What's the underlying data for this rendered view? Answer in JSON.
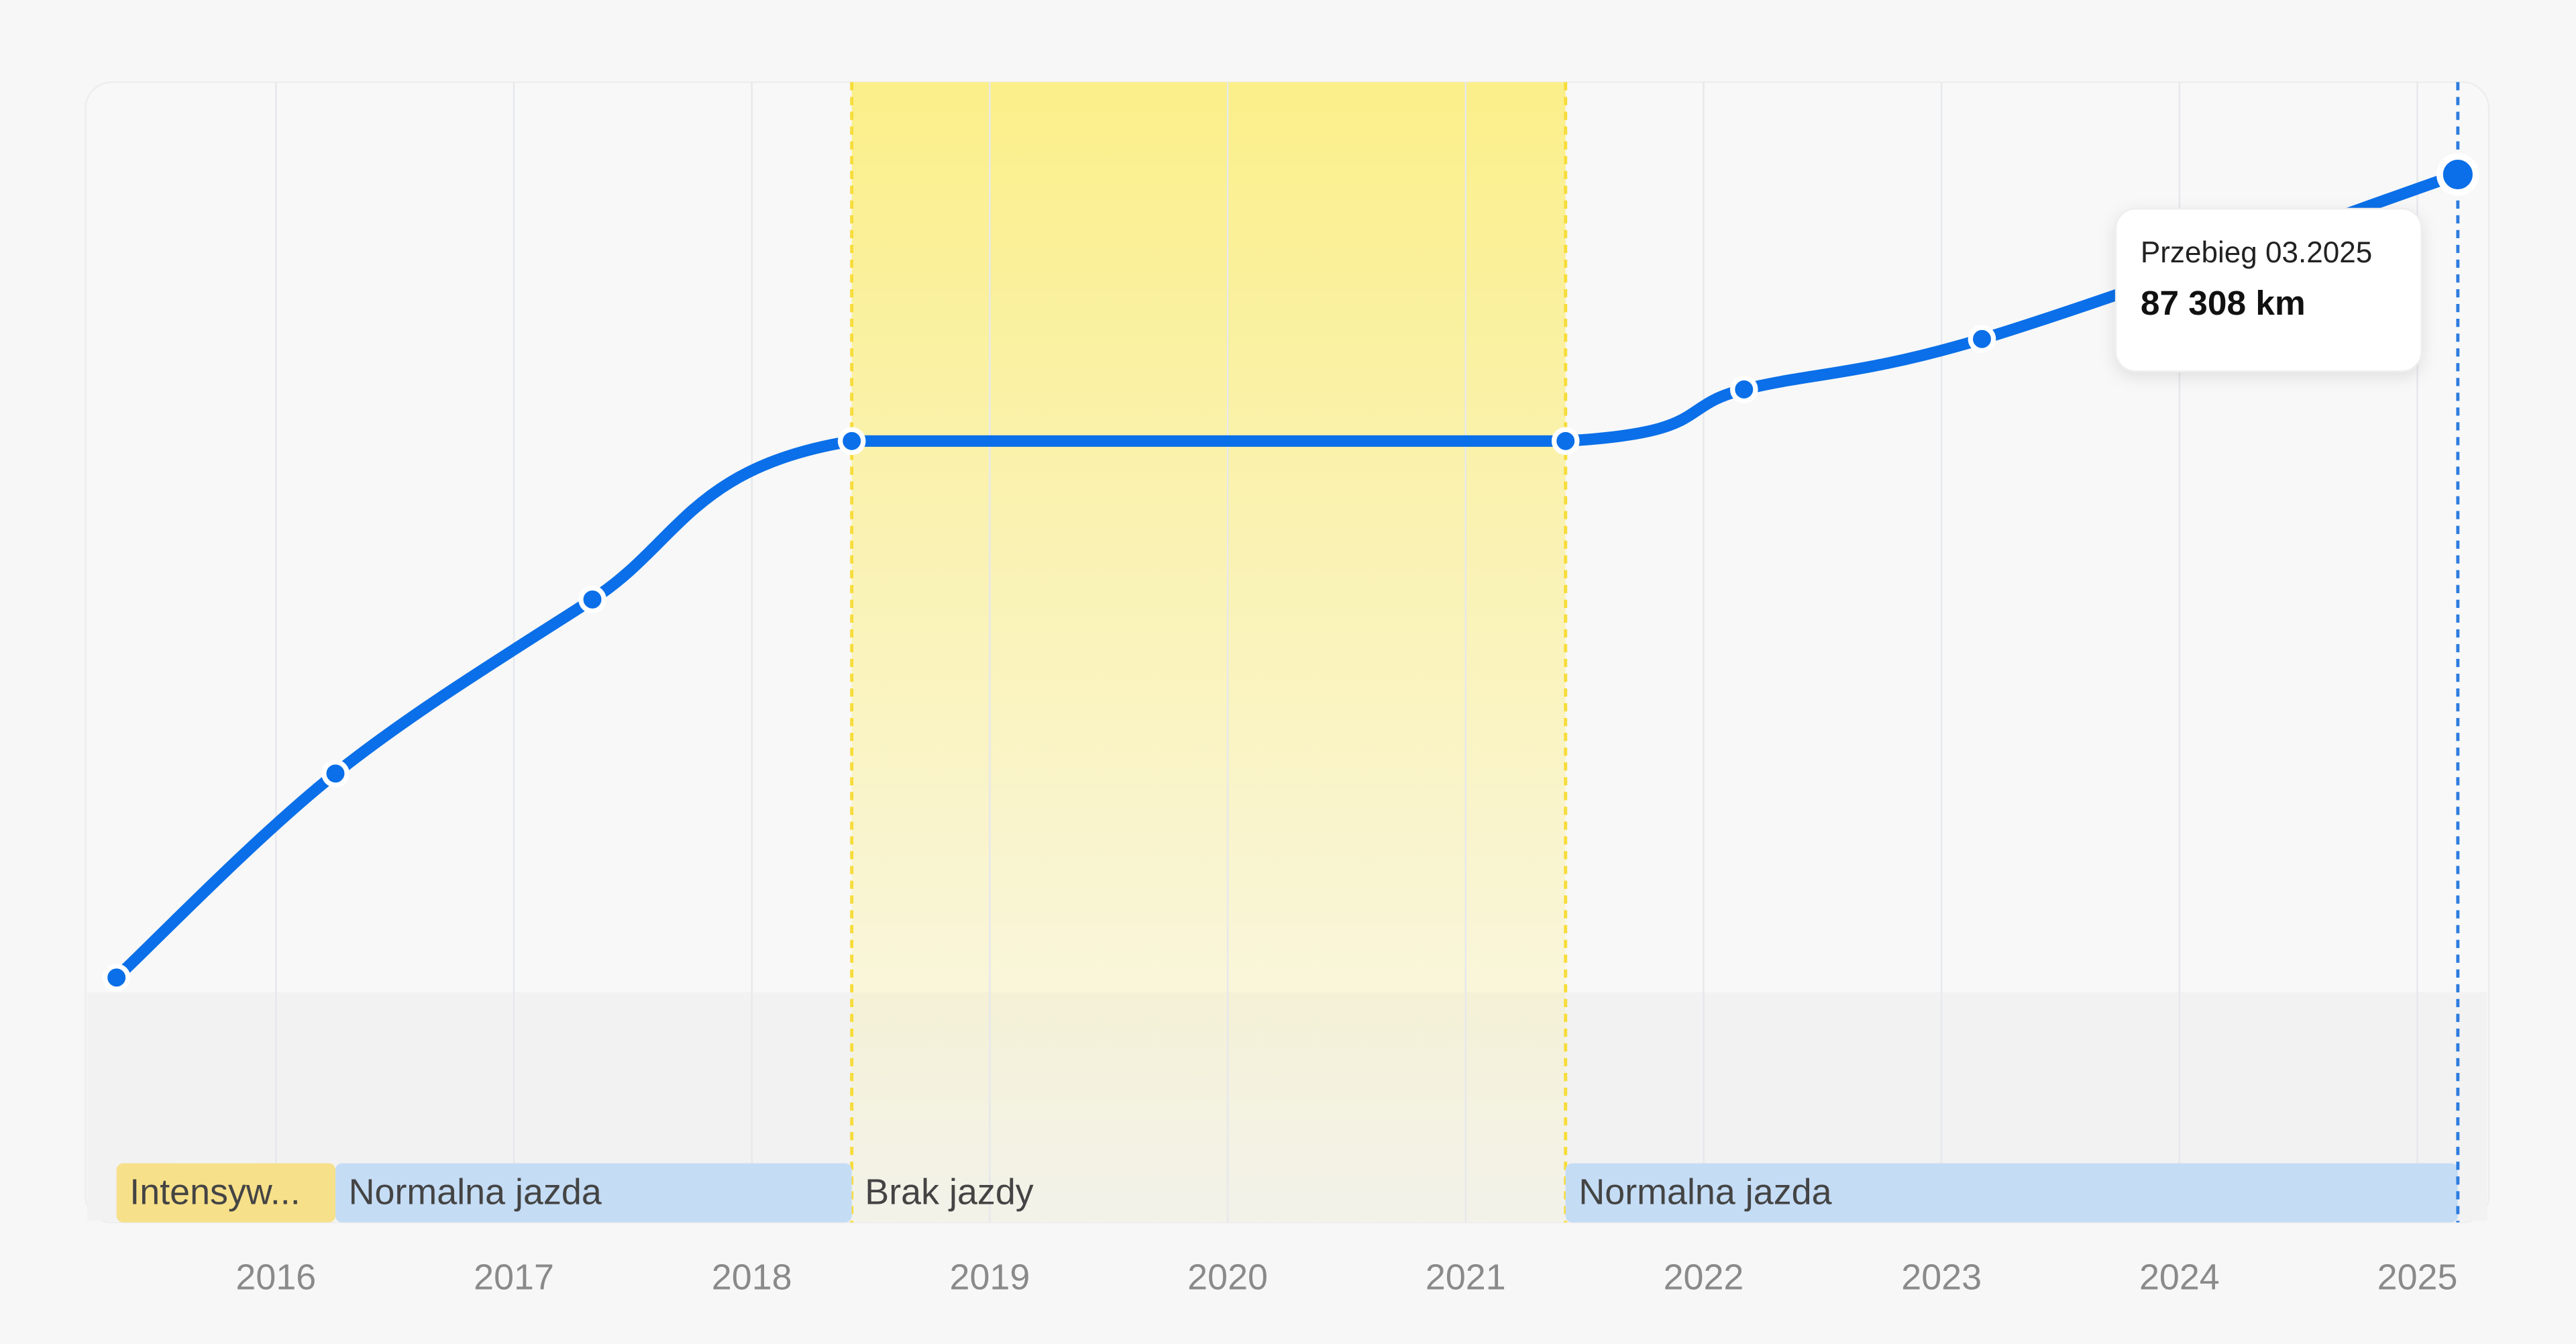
{
  "chart_data": {
    "type": "line",
    "x": [
      2015.33,
      2016.25,
      2017.33,
      2018.42,
      2021.42,
      2022.17,
      2023.17,
      2025.17
    ],
    "series": [
      {
        "color": "#0a6fe8",
        "values": [
          20400,
          37400,
          51900,
          65100,
          65100,
          69400,
          73600,
          87308
        ],
        "value_labels": [
          null,
          null,
          null,
          null,
          null,
          null,
          null,
          "87 308 km"
        ]
      }
    ],
    "xlim": [
      2015.2,
      2025.3
    ],
    "xticks": [
      2016,
      2017,
      2018,
      2019,
      2020,
      2021,
      2022,
      2023,
      2024,
      2025
    ],
    "ylim": [
      0,
      95000
    ],
    "grid": true,
    "tooltip": {
      "title": "Przebieg 03.2025"
    },
    "segments": [
      {
        "label": "Intensyw...",
        "start": 2015.33,
        "end": 2016.25,
        "color": "#f7e08a"
      },
      {
        "label": "Normalna jazda",
        "start": 2016.25,
        "end": 2018.42,
        "color": "#c5dcf5"
      },
      {
        "label": "Brak jazdy",
        "start": 2018.42,
        "end": 2021.42,
        "highlight": true
      },
      {
        "label": "Normalna jazda",
        "start": 2021.42,
        "end": 2025.17,
        "color": "#c5dcf5"
      }
    ]
  }
}
